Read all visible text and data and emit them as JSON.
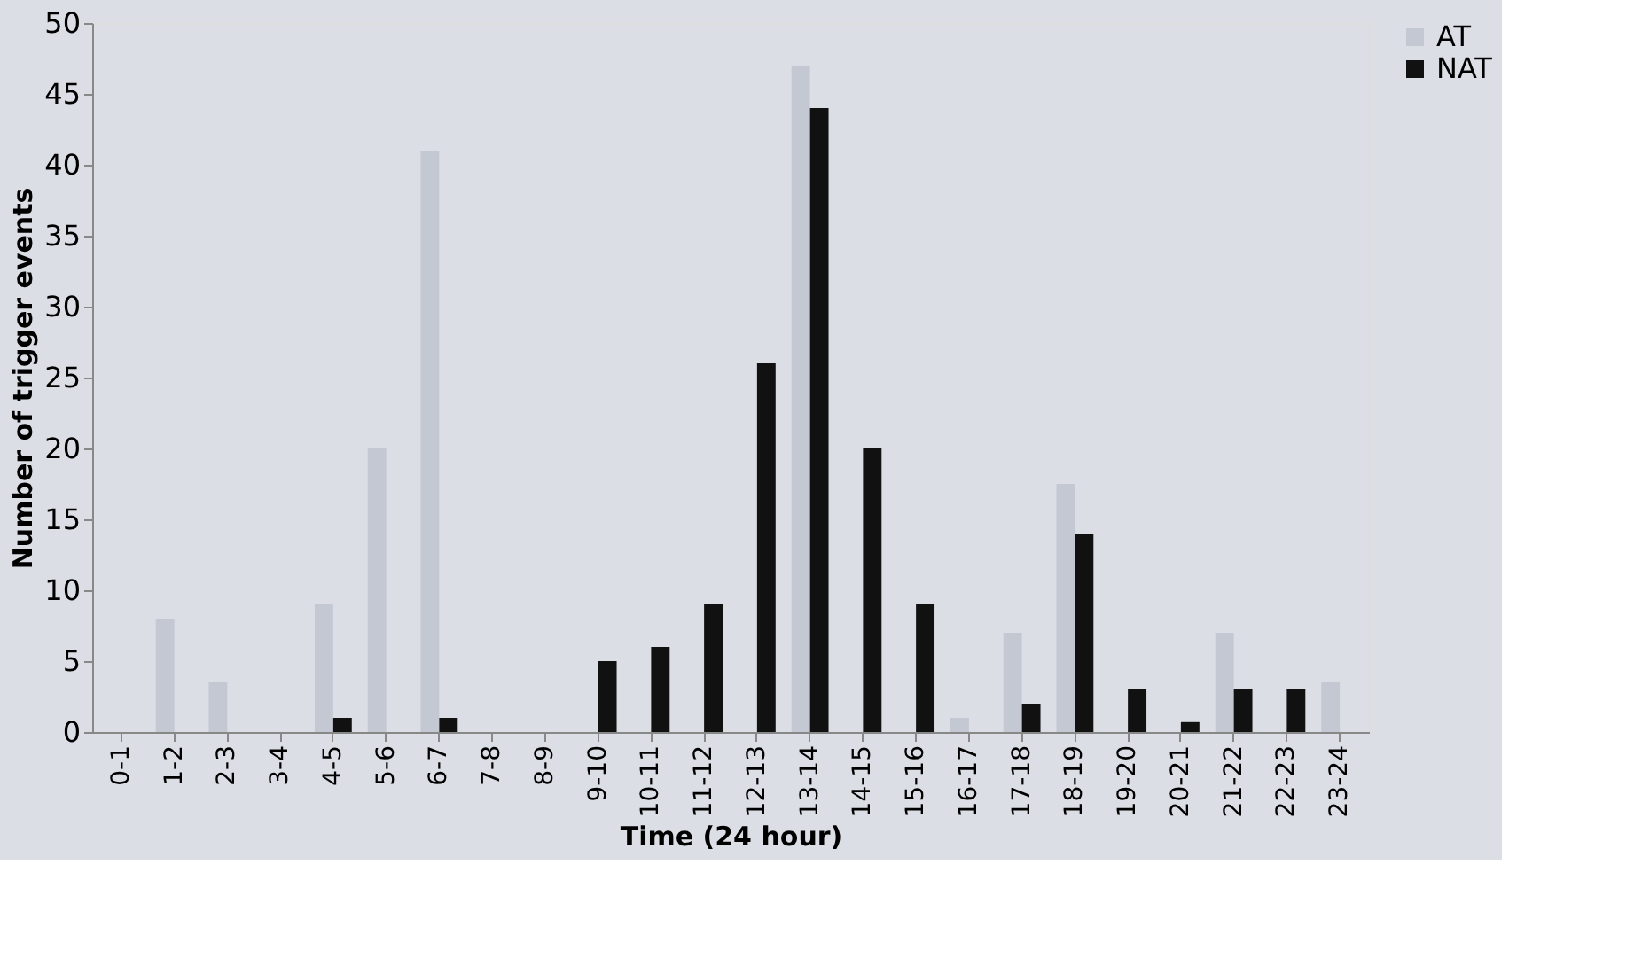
{
  "chart_data": {
    "type": "bar",
    "xlabel": "Time (24 hour)",
    "ylabel": "Number of trigger events",
    "categories": [
      "0-1",
      "1-2",
      "2-3",
      "3-4",
      "4-5",
      "5-6",
      "6-7",
      "7-8",
      "8-9",
      "9-10",
      "10-11",
      "11-12",
      "12-13",
      "13-14",
      "14-15",
      "15-16",
      "16-17",
      "17-18",
      "18-19",
      "19-20",
      "20-21",
      "21-22",
      "22-23",
      "23-24"
    ],
    "series": [
      {
        "name": "AT",
        "color": "#c4c8d2",
        "values": [
          0,
          8,
          3.5,
          0,
          9,
          20,
          41,
          0,
          0,
          0,
          0,
          0,
          0,
          47,
          0,
          0,
          1,
          7,
          17.5,
          0,
          0,
          7,
          0,
          3.5
        ]
      },
      {
        "name": "NAT",
        "color": "#111111",
        "values": [
          0,
          0,
          0,
          0,
          1,
          0,
          1,
          0,
          0,
          5,
          6,
          9,
          26,
          44,
          20,
          9,
          0,
          2,
          14,
          3,
          0.7,
          3,
          3,
          0
        ]
      }
    ],
    "ylim": [
      0,
      50
    ],
    "yticks": [
      0,
      5,
      10,
      15,
      20,
      25,
      30,
      35,
      40,
      45,
      50
    ],
    "grid": false,
    "legend": "right"
  }
}
